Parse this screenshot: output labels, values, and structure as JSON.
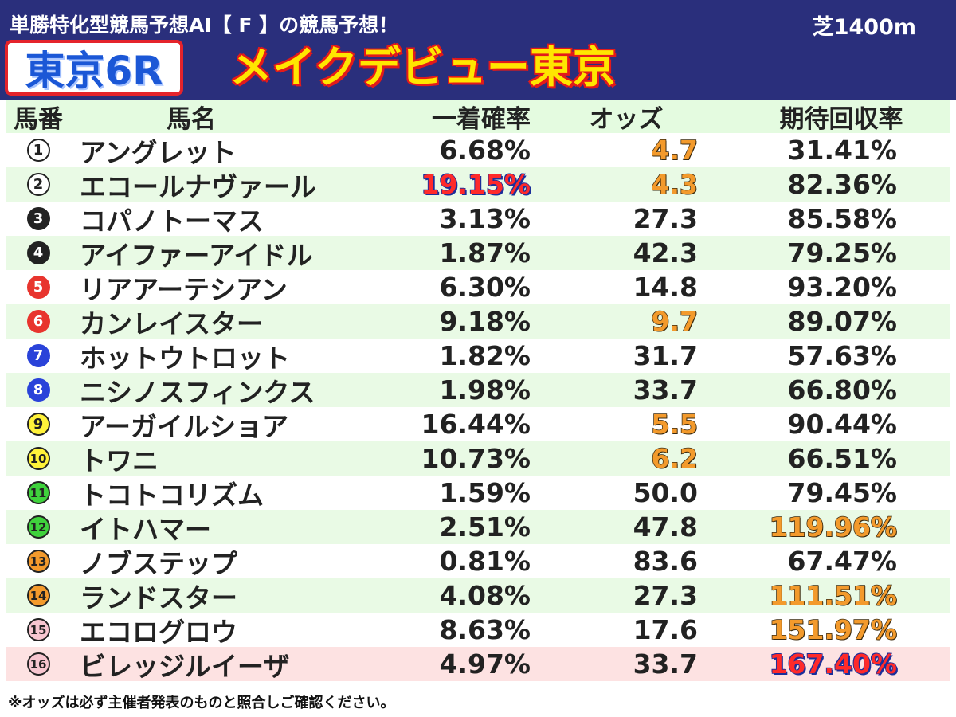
{
  "header": {
    "subtitle": "単勝特化型競馬予想AI【 F 】の競馬予想！",
    "surface": "芝1400m",
    "race_number": "東京6R",
    "race_name": "メイクデビュー東京"
  },
  "columns": {
    "num": "馬番",
    "name": "馬名",
    "prob": "一着確率",
    "odds": "オッズ",
    "ret": "期待回収率"
  },
  "colors": {
    "header_bg": "#2a2f7c",
    "row_green": "#e9fae5",
    "row_pink": "#fde2e2",
    "highlight_orange": "#f39a2c",
    "highlight_red": "#ff2a2a"
  },
  "horses": [
    {
      "num": "1",
      "name": "アングレット",
      "prob": "6.68%",
      "odds": "4.7",
      "ret": "31.41%",
      "badge_bg": "#ffffff",
      "badge_fg": "#222222",
      "badge_border": "#222222",
      "prob_hl": "",
      "odds_hl": "orange",
      "ret_hl": ""
    },
    {
      "num": "2",
      "name": "エコールナヴァール",
      "prob": "19.15%",
      "odds": "4.3",
      "ret": "82.36%",
      "badge_bg": "#ffffff",
      "badge_fg": "#222222",
      "badge_border": "#222222",
      "prob_hl": "red",
      "odds_hl": "orange",
      "ret_hl": ""
    },
    {
      "num": "3",
      "name": "コパノトーマス",
      "prob": "3.13%",
      "odds": "27.3",
      "ret": "85.58%",
      "badge_bg": "#222222",
      "badge_fg": "#ffffff",
      "badge_border": "#222222",
      "prob_hl": "",
      "odds_hl": "",
      "ret_hl": ""
    },
    {
      "num": "4",
      "name": "アイファーアイドル",
      "prob": "1.87%",
      "odds": "42.3",
      "ret": "79.25%",
      "badge_bg": "#222222",
      "badge_fg": "#ffffff",
      "badge_border": "#222222",
      "prob_hl": "",
      "odds_hl": "",
      "ret_hl": ""
    },
    {
      "num": "5",
      "name": "リアアーテシアン",
      "prob": "6.30%",
      "odds": "14.8",
      "ret": "93.20%",
      "badge_bg": "#e8352e",
      "badge_fg": "#ffffff",
      "badge_border": "#e8352e",
      "prob_hl": "",
      "odds_hl": "",
      "ret_hl": ""
    },
    {
      "num": "6",
      "name": "カンレイスター",
      "prob": "9.18%",
      "odds": "9.7",
      "ret": "89.07%",
      "badge_bg": "#e8352e",
      "badge_fg": "#ffffff",
      "badge_border": "#e8352e",
      "prob_hl": "",
      "odds_hl": "orange",
      "ret_hl": ""
    },
    {
      "num": "7",
      "name": "ホットウトロット",
      "prob": "1.82%",
      "odds": "31.7",
      "ret": "57.63%",
      "badge_bg": "#2a43d9",
      "badge_fg": "#ffffff",
      "badge_border": "#2a43d9",
      "prob_hl": "",
      "odds_hl": "",
      "ret_hl": ""
    },
    {
      "num": "8",
      "name": "ニシノスフィンクス",
      "prob": "1.98%",
      "odds": "33.7",
      "ret": "66.80%",
      "badge_bg": "#2a43d9",
      "badge_fg": "#ffffff",
      "badge_border": "#2a43d9",
      "prob_hl": "",
      "odds_hl": "",
      "ret_hl": ""
    },
    {
      "num": "9",
      "name": "アーガイルショア",
      "prob": "16.44%",
      "odds": "5.5",
      "ret": "90.44%",
      "badge_bg": "#fff23a",
      "badge_fg": "#222222",
      "badge_border": "#222222",
      "prob_hl": "",
      "odds_hl": "orange",
      "ret_hl": ""
    },
    {
      "num": "10",
      "name": "トワニ",
      "prob": "10.73%",
      "odds": "6.2",
      "ret": "66.51%",
      "badge_bg": "#fff23a",
      "badge_fg": "#222222",
      "badge_border": "#222222",
      "prob_hl": "",
      "odds_hl": "orange",
      "ret_hl": ""
    },
    {
      "num": "11",
      "name": "トコトコリズム",
      "prob": "1.59%",
      "odds": "50.0",
      "ret": "79.45%",
      "badge_bg": "#3fd23c",
      "badge_fg": "#222222",
      "badge_border": "#222222",
      "prob_hl": "",
      "odds_hl": "",
      "ret_hl": ""
    },
    {
      "num": "12",
      "name": "イトハマー",
      "prob": "2.51%",
      "odds": "47.8",
      "ret": "119.96%",
      "badge_bg": "#3fd23c",
      "badge_fg": "#222222",
      "badge_border": "#222222",
      "prob_hl": "",
      "odds_hl": "",
      "ret_hl": "orange"
    },
    {
      "num": "13",
      "name": "ノブステップ",
      "prob": "0.81%",
      "odds": "83.6",
      "ret": "67.47%",
      "badge_bg": "#f39a2c",
      "badge_fg": "#222222",
      "badge_border": "#222222",
      "prob_hl": "",
      "odds_hl": "",
      "ret_hl": ""
    },
    {
      "num": "14",
      "name": "ランドスター",
      "prob": "4.08%",
      "odds": "27.3",
      "ret": "111.51%",
      "badge_bg": "#f39a2c",
      "badge_fg": "#222222",
      "badge_border": "#222222",
      "prob_hl": "",
      "odds_hl": "",
      "ret_hl": "orange"
    },
    {
      "num": "15",
      "name": "エコログロウ",
      "prob": "8.63%",
      "odds": "17.6",
      "ret": "151.97%",
      "badge_bg": "#f7c6d0",
      "badge_fg": "#222222",
      "badge_border": "#222222",
      "prob_hl": "",
      "odds_hl": "",
      "ret_hl": "orange"
    },
    {
      "num": "16",
      "name": "ビレッジルイーザ",
      "prob": "4.97%",
      "odds": "33.7",
      "ret": "167.40%",
      "badge_bg": "#f7c6d0",
      "badge_fg": "#222222",
      "badge_border": "#222222",
      "prob_hl": "",
      "odds_hl": "",
      "ret_hl": "red"
    }
  ],
  "footer": "※オッズは必ず主催者発表のものと照合しご確認ください。"
}
